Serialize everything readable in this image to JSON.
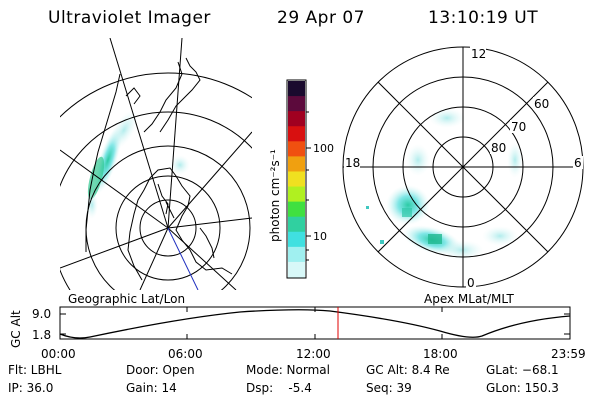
{
  "header": {
    "title": "Ultraviolet Imager",
    "date": "29 Apr 07",
    "time": "13:10:19 UT"
  },
  "left_panel": {
    "caption": "Geographic Lat/Lon"
  },
  "right_panel": {
    "caption": "Apex MLat/MLT",
    "mlt_labels": {
      "top": "12",
      "left": "18",
      "right": "6",
      "bottom": "0"
    },
    "lat_labels": [
      "60",
      "70",
      "80"
    ]
  },
  "colorbar": {
    "unit_label": "photon cm⁻²s⁻¹",
    "ticks": [
      "100",
      "10"
    ],
    "colors": [
      "#1a0a2e",
      "#5c0a3c",
      "#a00020",
      "#d81010",
      "#f05010",
      "#f0a010",
      "#f0e020",
      "#b0f020",
      "#40e040",
      "#30d0a0",
      "#40e0e0",
      "#a0f0f0",
      "#d8f8f8"
    ]
  },
  "altitude_strip": {
    "ylabel": "GC Alt",
    "yticks": [
      "9.0",
      "1.8"
    ],
    "xticks": [
      "00:00",
      "06:00",
      "12:00",
      "18:00",
      "23:59"
    ],
    "marker_color": "#e00000"
  },
  "info": {
    "filter": "Flt: LBHL",
    "ip": "IP: 36.0",
    "door": "Door: Open",
    "gain": "Gain: 14",
    "mode": "Mode: Normal",
    "dsp": "Dsp:    -5.4",
    "gcalt": "GC Alt: 8.4 Re",
    "seq": "Seq: 39",
    "glat": "GLat: −68.1",
    "glon": "GLon: 150.3"
  }
}
